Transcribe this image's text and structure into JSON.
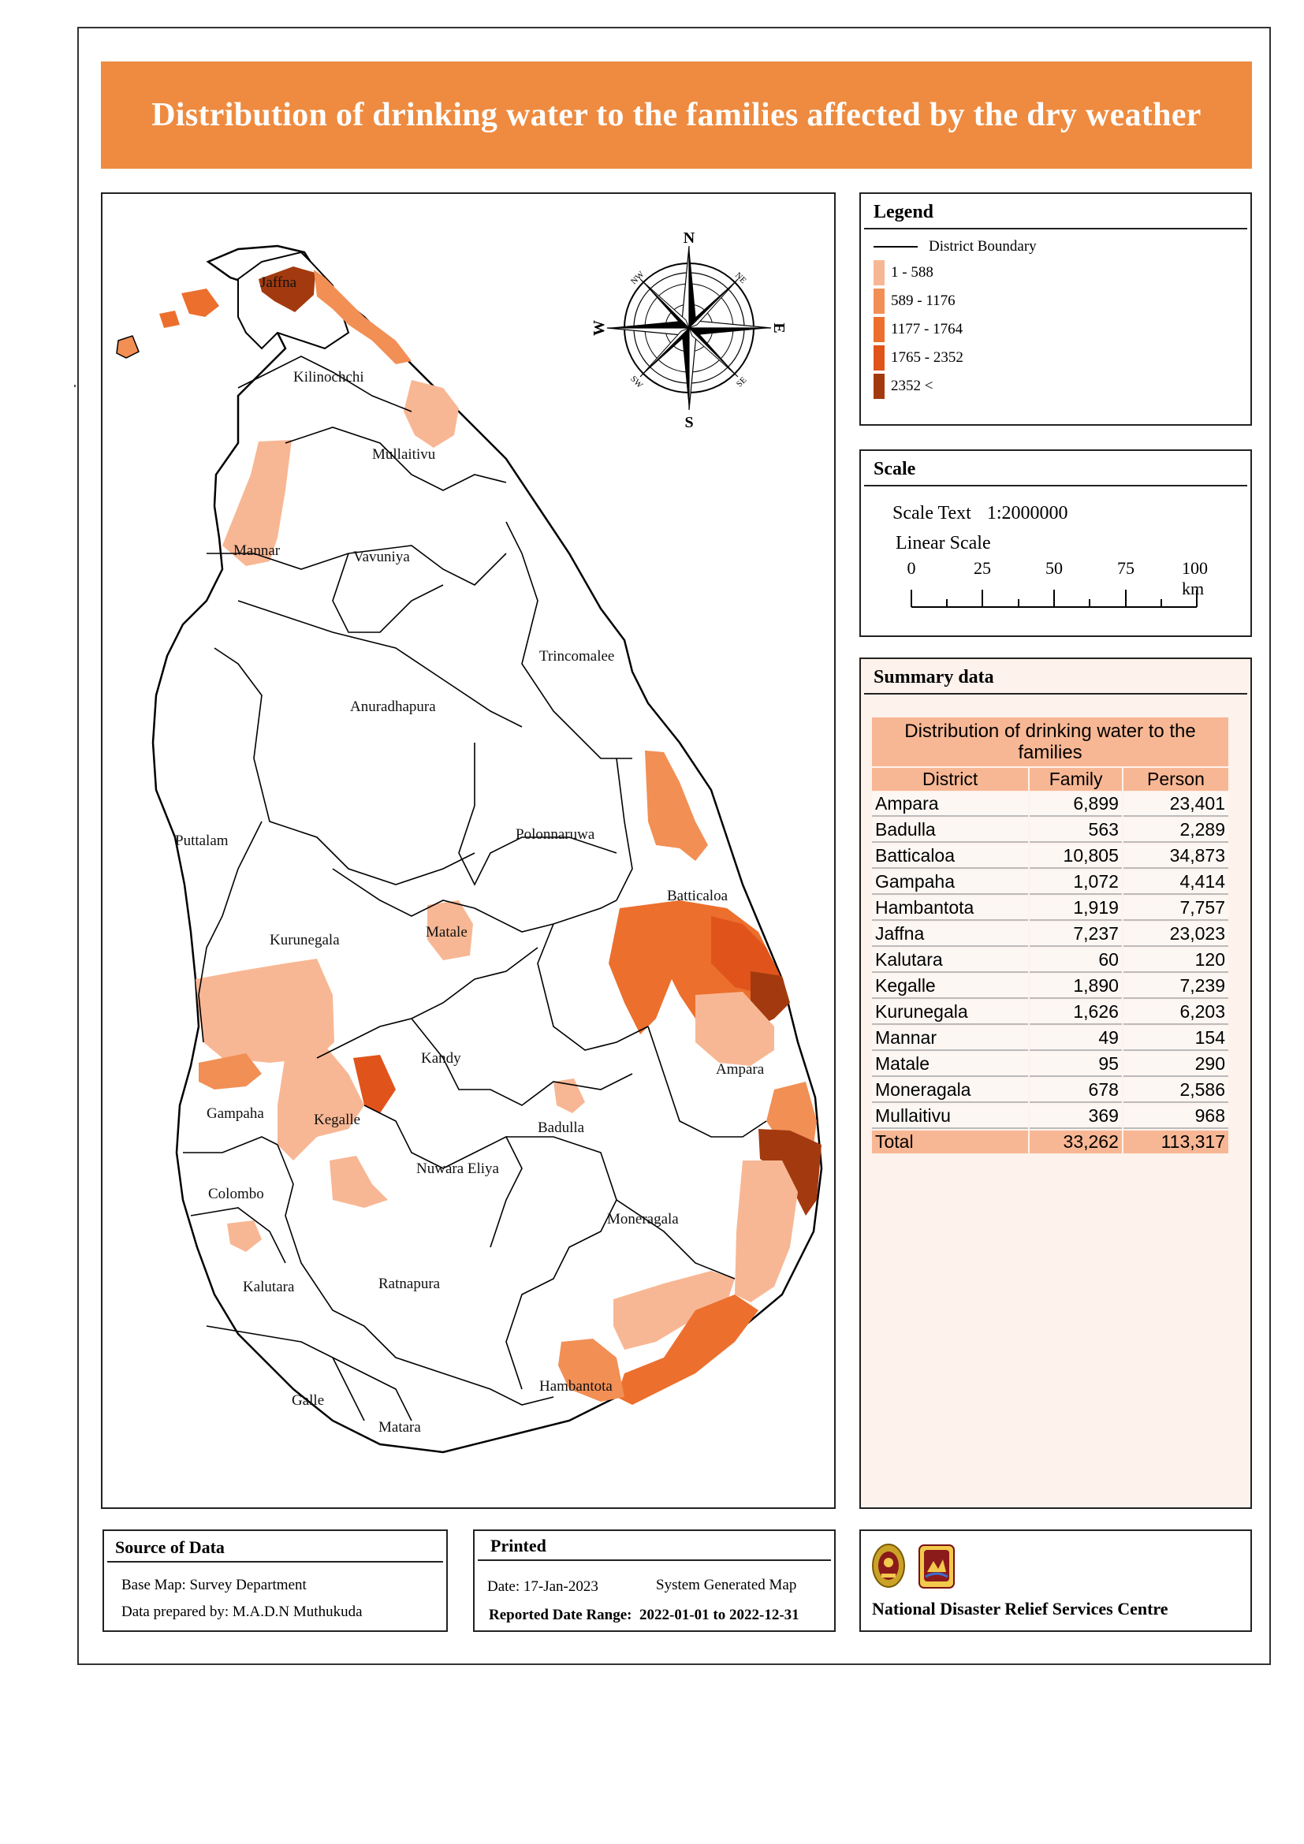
{
  "title": "Distribution of drinking water to the families affected by the dry weather",
  "colors": {
    "title_bar": "#ee8b40",
    "class_1": "#f8b794",
    "class_2": "#f28f55",
    "class_3": "#ec6f2d",
    "class_4": "#e0541b",
    "class_5": "#a33a0f",
    "summary_bg": "#fdf2ec"
  },
  "legend": {
    "heading": "Legend",
    "boundary_label": "District Boundary",
    "classes": [
      {
        "label": "1 - 588",
        "color": "#f8b794"
      },
      {
        "label": "589 - 1176",
        "color": "#f28f55"
      },
      {
        "label": "1177 - 1764",
        "color": "#ec6f2d"
      },
      {
        "label": "1765 - 2352",
        "color": "#e0541b"
      },
      {
        "label": "2352 <",
        "color": "#a33a0f"
      }
    ]
  },
  "scale": {
    "heading": "Scale",
    "scale_text_label": "Scale Text",
    "scale_text_value": "1:2000000",
    "linear_label": "Linear Scale",
    "ticks": [
      "0",
      "25",
      "50",
      "75",
      "100 km"
    ]
  },
  "summary": {
    "heading": "Summary data",
    "table_caption": "Distribution of drinking water to the families",
    "columns": [
      "District",
      "Family",
      "Person"
    ],
    "rows": [
      [
        "Ampara",
        "6,899",
        "23,401"
      ],
      [
        "Badulla",
        "563",
        "2,289"
      ],
      [
        "Batticaloa",
        "10,805",
        "34,873"
      ],
      [
        "Gampaha",
        "1,072",
        "4,414"
      ],
      [
        "Hambantota",
        "1,919",
        "7,757"
      ],
      [
        "Jaffna",
        "7,237",
        "23,023"
      ],
      [
        "Kalutara",
        "60",
        "120"
      ],
      [
        "Kegalle",
        "1,890",
        "7,239"
      ],
      [
        "Kurunegala",
        "1,626",
        "6,203"
      ],
      [
        "Mannar",
        "49",
        "154"
      ],
      [
        "Matale",
        "95",
        "290"
      ],
      [
        "Moneragala",
        "678",
        "2,586"
      ],
      [
        "Mullaitivu",
        "369",
        "968"
      ]
    ],
    "total": [
      "Total",
      "33,262",
      "113,317"
    ]
  },
  "compass": {
    "n": "N",
    "s": "S",
    "e": "E",
    "w": "W",
    "ne": "NE",
    "nw": "NW",
    "se": "SE",
    "sw": "SW"
  },
  "districts": {
    "jaffna": "Jaffna",
    "kilinochchi": "Kilinochchi",
    "mullaitivu": "Mullaitivu",
    "mannar": "Mannar",
    "vavuniya": "Vavuniya",
    "trincomalee": "Trincomalee",
    "anuradhapura": "Anuradhapura",
    "puttalam": "Puttalam",
    "polonnaruwa": "Polonnaruwa",
    "batticaloa": "Batticaloa",
    "kurunegala": "Kurunegala",
    "matale": "Matale",
    "kandy": "Kandy",
    "ampara": "Ampara",
    "gampaha": "Gampaha",
    "kegalle": "Kegalle",
    "badulla": "Badulla",
    "nuwara_eliya": "Nuwara Eliya",
    "colombo": "Colombo",
    "moneragala": "Moneragala",
    "kalutara": "Kalutara",
    "ratnapura": "Ratnapura",
    "hambantota": "Hambantota",
    "galle": "Galle",
    "matara": "Matara"
  },
  "source": {
    "heading": "Source of Data",
    "base_map": "Base Map: Survey Department",
    "prepared_by": "Data prepared by: M.A.D.N Muthukuda"
  },
  "printed": {
    "heading": "Printed",
    "date": "Date: 17-Jan-2023",
    "system": "System Generated Map",
    "range_label": "Reported Date Range:",
    "range_value": "2022-01-01 to 2022-12-31"
  },
  "organization": {
    "name": "National Disaster Relief Services Centre"
  }
}
